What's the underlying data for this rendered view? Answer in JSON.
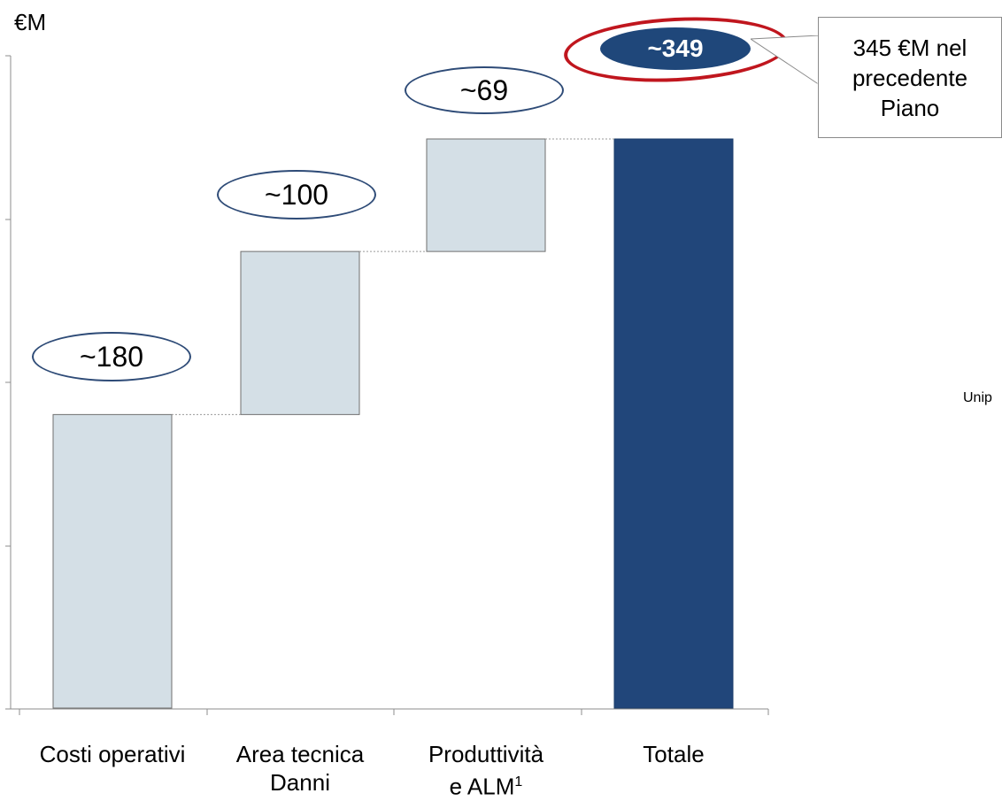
{
  "chart_data": {
    "type": "bar",
    "subtype": "waterfall",
    "unit_label": "€M",
    "categories": [
      {
        "line1": "Costi operativi",
        "line2": "",
        "sup": ""
      },
      {
        "line1": "Area tecnica",
        "line2": "Danni",
        "sup": ""
      },
      {
        "line1": "Produttività",
        "line2": "e ALM",
        "sup": "1"
      },
      {
        "line1": "Totale",
        "line2": "",
        "sup": ""
      }
    ],
    "values": [
      180,
      100,
      69,
      349
    ],
    "value_labels": [
      "~180",
      "~100",
      "~69",
      "~349"
    ],
    "is_total": [
      false,
      false,
      false,
      true
    ],
    "ylim": [
      0,
      349
    ],
    "grid": false,
    "colors": {
      "step": "#d4dfe6",
      "total": "#21467a",
      "bubble_border": "#2e4b77",
      "highlight_ring": "#c0161e"
    }
  },
  "callout": {
    "lines": [
      "345 €M nel",
      "precedente",
      "Piano"
    ]
  },
  "side_text": "Unip"
}
